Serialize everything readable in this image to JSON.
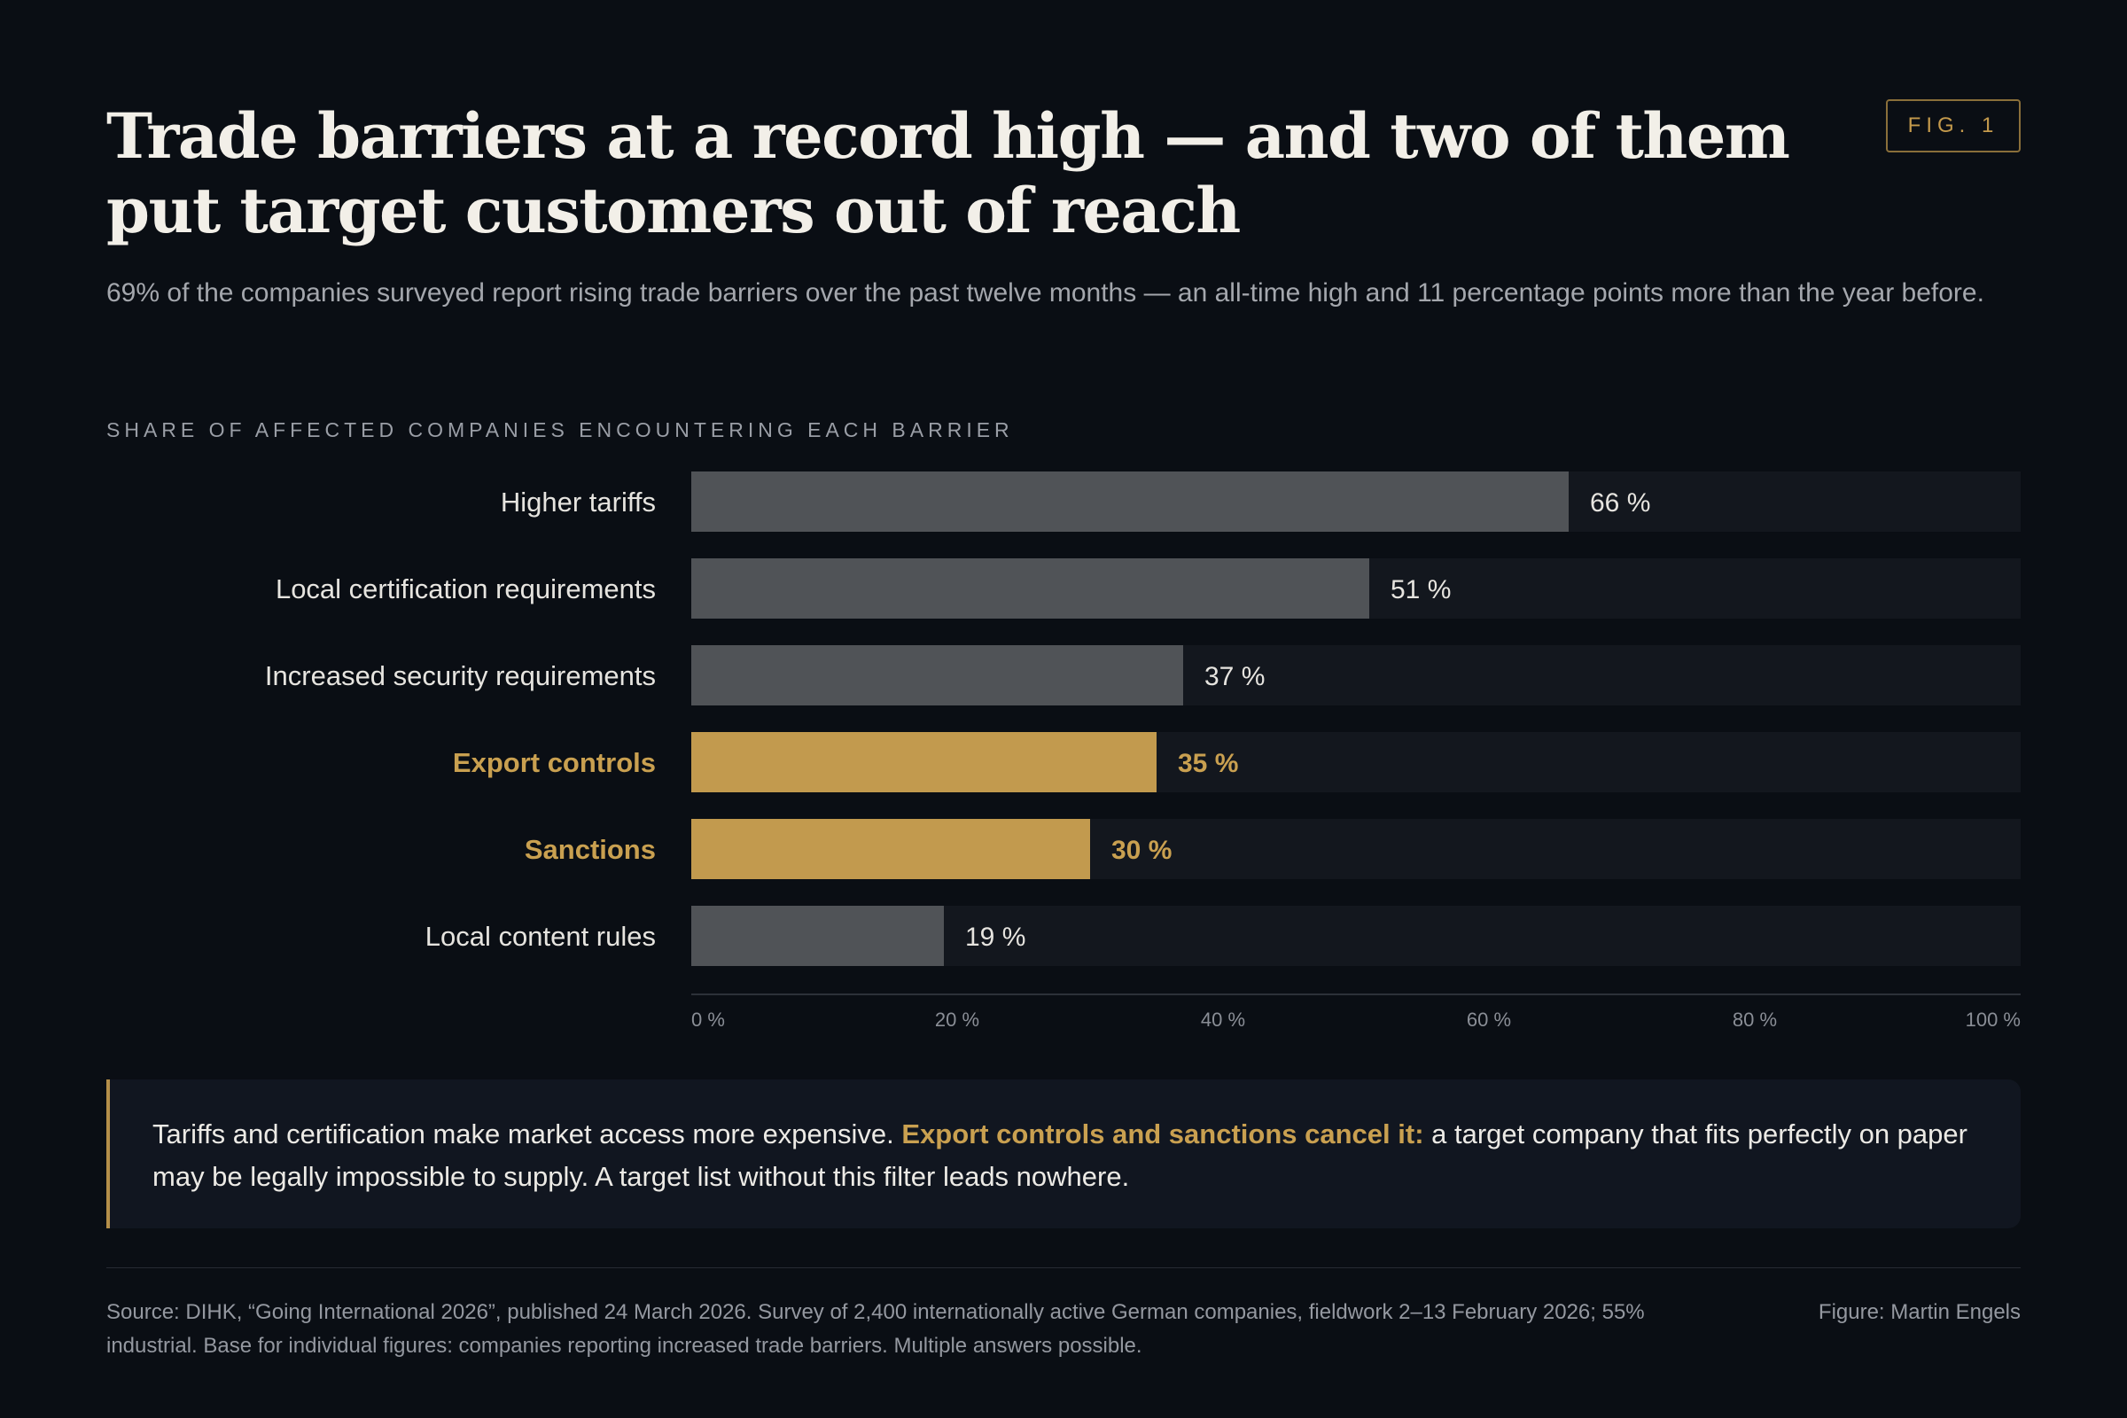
{
  "figure_badge": "FIG. 1",
  "title": "Trade barriers at a record high — and two of them put target customers out of reach",
  "subtitle": "69% of the companies surveyed report rising trade barriers over the past twelve months — an all-time high and 11 percentage points more than the year before.",
  "section_label": "SHARE OF AFFECTED COMPANIES ENCOUNTERING EACH BARRIER",
  "chart_data": {
    "type": "bar",
    "orientation": "horizontal",
    "categories": [
      "Higher tariffs",
      "Local certification requirements",
      "Increased security requirements",
      "Export controls",
      "Sanctions",
      "Local content rules"
    ],
    "values": [
      66,
      51,
      37,
      35,
      30,
      19
    ],
    "value_labels": [
      "66 %",
      "51 %",
      "37 %",
      "35 %",
      "30 %",
      "19 %"
    ],
    "highlighted": [
      false,
      false,
      false,
      true,
      true,
      false
    ],
    "xlim": [
      0,
      100
    ],
    "x_ticks": [
      "0 %",
      "20 %",
      "40 %",
      "60 %",
      "80 %",
      "100 %"
    ],
    "grid": false,
    "colors": {
      "bar": "#505357",
      "bar_highlight": "#c29a4e",
      "track": "#13171e",
      "label": "#e6e4df",
      "label_highlight": "#c9a050",
      "tick": "#8a8e96"
    }
  },
  "callout": {
    "text_before": "Tariffs and certification make market access more expensive. ",
    "highlight": "Export controls and sanctions cancel it:",
    "text_after": " a target company that fits perfectly on paper may be legally impossible to supply. A target list without this filter leads nowhere."
  },
  "source": "Source: DIHK, “Going International 2026”, published 24 March 2026. Survey of 2,400 internationally active German companies, fieldwork 2–13 February 2026; 55% industrial. Base for individual figures: companies reporting increased trade barriers. Multiple answers possible.",
  "credit": "Figure: Martin Engels"
}
